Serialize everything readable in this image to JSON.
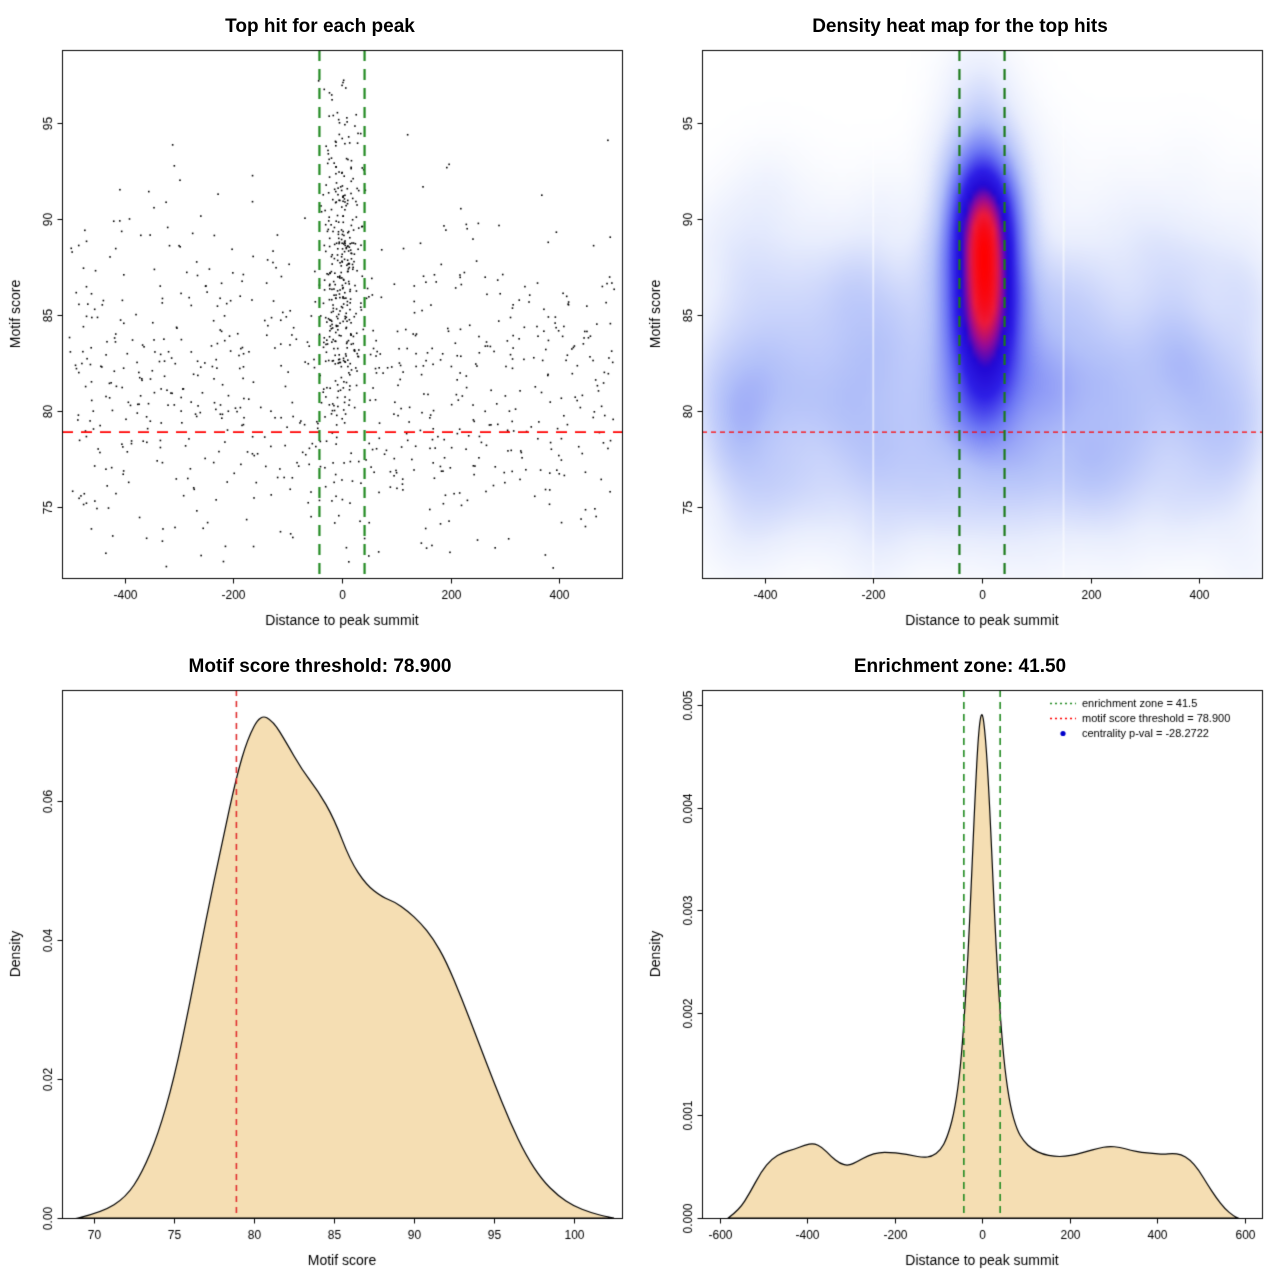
{
  "page": {
    "background": "#ffffff"
  },
  "chart_data": [
    {
      "id": "top-hit-scatter",
      "type": "scatter",
      "title": "Top hit for each peak",
      "xlabel": "Distance to peak summit",
      "ylabel": "Motif score",
      "xlim": [
        -515,
        515
      ],
      "ylim": [
        71.3,
        98.8
      ],
      "xticks": [
        -400,
        -200,
        0,
        200,
        400
      ],
      "xtick_labels": [
        "-400",
        "-200",
        "0",
        "200",
        "400"
      ],
      "yticks": [
        75,
        80,
        85,
        90,
        95
      ],
      "ytick_labels": [
        "75",
        "80",
        "85",
        "90",
        "95"
      ],
      "point_color": "#000000",
      "point_size": 1.6,
      "hline": {
        "y": 78.9,
        "color": "#FF0000",
        "dash": [
          11,
          8
        ],
        "width": 1.8
      },
      "vlines": {
        "x": [
          -41.5,
          41.5
        ],
        "color": "#228B22",
        "dash": [
          11,
          8
        ],
        "width": 2.2
      },
      "generator": {
        "seed": 42,
        "background": {
          "n": 780,
          "x_min": -505,
          "x_max": 505,
          "y_mean": 81,
          "y_sd": 4.8,
          "y_min": 71.8,
          "y_max": 95.6
        },
        "central": {
          "n": 350,
          "x_sd": 20,
          "x_max_abs": 44,
          "y_mean": 87.5,
          "y_sd": 4.3,
          "y_min": 74,
          "y_max": 97.6
        }
      }
    },
    {
      "id": "top-hit-heatmap",
      "type": "heatmap",
      "title": "Density heat map for the top hits",
      "xlabel": "Distance to peak summit",
      "ylabel": "Motif score",
      "xlim": [
        -515,
        515
      ],
      "ylim": [
        71.3,
        98.8
      ],
      "xticks": [
        -400,
        -200,
        0,
        200,
        400
      ],
      "xtick_labels": [
        "-400",
        "-200",
        "0",
        "200",
        "400"
      ],
      "yticks": [
        75,
        80,
        85,
        90,
        95
      ],
      "ytick_labels": [
        "75",
        "80",
        "85",
        "90",
        "95"
      ],
      "hline": {
        "y": 78.9,
        "color": "#FF0000",
        "dash": [
          5,
          4
        ],
        "width": 1.2
      },
      "vlines": {
        "x": [
          -41.5,
          41.5
        ],
        "color": "#1B7A1B",
        "dash": [
          11,
          8
        ],
        "width": 2.2
      },
      "generator": {
        "seed": 7,
        "background": {
          "n": 900,
          "x_min": -505,
          "x_max": 505,
          "y_mean": 81,
          "y_sd": 4.8,
          "y_min": 71.8,
          "y_max": 95.6
        },
        "central": {
          "n": 430,
          "x_sd": 20,
          "x_max_abs": 44,
          "y_mean": 87.5,
          "y_sd": 4.3,
          "y_min": 74,
          "y_max": 97.6
        }
      },
      "kde": {
        "bw_x": 40,
        "bw_y": 1.6,
        "grid": 120,
        "gamma": 0.72
      },
      "artifact_columns": [
        -200,
        150
      ],
      "colormap": [
        [
          0,
          [
            255,
            255,
            255
          ]
        ],
        [
          0.12,
          [
            232,
            237,
            253
          ]
        ],
        [
          0.3,
          [
            178,
            192,
            249
          ]
        ],
        [
          0.48,
          [
            106,
            116,
            244
          ]
        ],
        [
          0.63,
          [
            46,
            32,
            230
          ]
        ],
        [
          0.75,
          [
            34,
            8,
            212
          ]
        ],
        [
          0.84,
          [
            150,
            10,
            150
          ]
        ],
        [
          0.92,
          [
            235,
            25,
            60
          ]
        ],
        [
          1,
          [
            255,
            0,
            0
          ]
        ]
      ]
    },
    {
      "id": "motif-score-density",
      "type": "area",
      "title": "Motif score threshold: 78.900",
      "xlabel": "Motif score",
      "ylabel": "Density",
      "xlim": [
        68,
        103
      ],
      "ylim": [
        0,
        0.076
      ],
      "xticks": [
        70,
        75,
        80,
        85,
        90,
        95,
        100
      ],
      "xtick_labels": [
        "70",
        "75",
        "80",
        "85",
        "90",
        "95",
        "100"
      ],
      "yticks": [
        0,
        0.02,
        0.04,
        0.06
      ],
      "ytick_labels": [
        "0.00",
        "0.02",
        "0.04",
        "0.06"
      ],
      "fill": "#F5DEB3",
      "stroke": "#000000",
      "vline": {
        "x": 78.9,
        "color": "#E03030",
        "dash": [
          6,
          5
        ],
        "width": 1.6
      },
      "points": [
        [
          69,
          0
        ],
        [
          70.5,
          0.0008
        ],
        [
          72,
          0.003
        ],
        [
          73,
          0.0065
        ],
        [
          74,
          0.012
        ],
        [
          75,
          0.02
        ],
        [
          76,
          0.031
        ],
        [
          77,
          0.043
        ],
        [
          78,
          0.054
        ],
        [
          78.9,
          0.0635
        ],
        [
          79.6,
          0.069
        ],
        [
          80.4,
          0.0725
        ],
        [
          81.2,
          0.0715
        ],
        [
          82,
          0.0685
        ],
        [
          83,
          0.0645
        ],
        [
          84,
          0.0615
        ],
        [
          85,
          0.0575
        ],
        [
          86,
          0.0515
        ],
        [
          87,
          0.048
        ],
        [
          88,
          0.0462
        ],
        [
          88.8,
          0.0455
        ],
        [
          89.6,
          0.0442
        ],
        [
          90.4,
          0.0425
        ],
        [
          91.2,
          0.0402
        ],
        [
          92,
          0.037
        ],
        [
          93,
          0.0315
        ],
        [
          94,
          0.0255
        ],
        [
          95,
          0.0195
        ],
        [
          96,
          0.0138
        ],
        [
          97,
          0.009
        ],
        [
          98,
          0.0055
        ],
        [
          99,
          0.0032
        ],
        [
          100,
          0.0017
        ],
        [
          101,
          0.0008
        ],
        [
          102,
          0.0002
        ],
        [
          102.5,
          0
        ]
      ]
    },
    {
      "id": "distance-density",
      "type": "area",
      "title": "Enrichment zone: 41.50",
      "xlabel": "Distance to peak summit",
      "ylabel": "Density",
      "xlim": [
        -640,
        640
      ],
      "ylim": [
        0,
        0.00515
      ],
      "xticks": [
        -600,
        -400,
        -200,
        0,
        200,
        400,
        600
      ],
      "xtick_labels": [
        "-600",
        "-400",
        "-200",
        "0",
        "200",
        "400",
        "600"
      ],
      "yticks": [
        0,
        0.001,
        0.002,
        0.003,
        0.004,
        0.005
      ],
      "ytick_labels": [
        "0.000",
        "0.001",
        "0.002",
        "0.003",
        "0.004",
        "0.005"
      ],
      "fill": "#F5DEB3",
      "stroke": "#000000",
      "vlines": {
        "x": [
          -41.5,
          41.5
        ],
        "color": "#228B22",
        "dash": [
          7,
          5
        ],
        "width": 1.6
      },
      "legend": {
        "items": [
          {
            "label": "enrichment zone = 41.5",
            "color": "#228B22",
            "style": "dotted-line"
          },
          {
            "label": "motif score threshold = 78.900",
            "color": "#FF0000",
            "style": "dotted-line"
          },
          {
            "label": "centrality p-val = -28.2722",
            "color": "#0000CC",
            "style": "point"
          }
        ]
      },
      "points": [
        [
          -580,
          0
        ],
        [
          -555,
          8e-05
        ],
        [
          -530,
          0.00025
        ],
        [
          -505,
          0.00045
        ],
        [
          -480,
          0.00058
        ],
        [
          -455,
          0.00064
        ],
        [
          -430,
          0.00067
        ],
        [
          -405,
          0.00071
        ],
        [
          -385,
          0.00073
        ],
        [
          -365,
          0.00069
        ],
        [
          -345,
          0.0006
        ],
        [
          -325,
          0.00053
        ],
        [
          -305,
          0.00051
        ],
        [
          -285,
          0.00055
        ],
        [
          -260,
          0.00061
        ],
        [
          -235,
          0.00064
        ],
        [
          -210,
          0.00064
        ],
        [
          -185,
          0.00063
        ],
        [
          -160,
          0.00061
        ],
        [
          -135,
          0.00059
        ],
        [
          -115,
          0.0006
        ],
        [
          -95,
          0.00066
        ],
        [
          -80,
          0.00078
        ],
        [
          -65,
          0.001
        ],
        [
          -52,
          0.00135
        ],
        [
          -42,
          0.00185
        ],
        [
          -32,
          0.00255
        ],
        [
          -24,
          0.0033
        ],
        [
          -16,
          0.0041
        ],
        [
          -8,
          0.00475
        ],
        [
          0,
          0.00497
        ],
        [
          8,
          0.0047
        ],
        [
          16,
          0.00415
        ],
        [
          24,
          0.0034
        ],
        [
          32,
          0.00265
        ],
        [
          42,
          0.00195
        ],
        [
          52,
          0.00145
        ],
        [
          65,
          0.00108
        ],
        [
          80,
          0.00086
        ],
        [
          95,
          0.00075
        ],
        [
          115,
          0.00067
        ],
        [
          140,
          0.00062
        ],
        [
          165,
          0.0006
        ],
        [
          190,
          0.0006
        ],
        [
          215,
          0.00062
        ],
        [
          240,
          0.00065
        ],
        [
          265,
          0.00068
        ],
        [
          290,
          0.0007
        ],
        [
          315,
          0.00069
        ],
        [
          340,
          0.00066
        ],
        [
          365,
          0.00064
        ],
        [
          390,
          0.00063
        ],
        [
          415,
          0.00062
        ],
        [
          435,
          0.00063
        ],
        [
          455,
          0.00062
        ],
        [
          475,
          0.00057
        ],
        [
          495,
          0.00047
        ],
        [
          515,
          0.00033
        ],
        [
          535,
          0.0002
        ],
        [
          555,
          9e-05
        ],
        [
          575,
          2e-05
        ],
        [
          585,
          0
        ]
      ]
    }
  ]
}
